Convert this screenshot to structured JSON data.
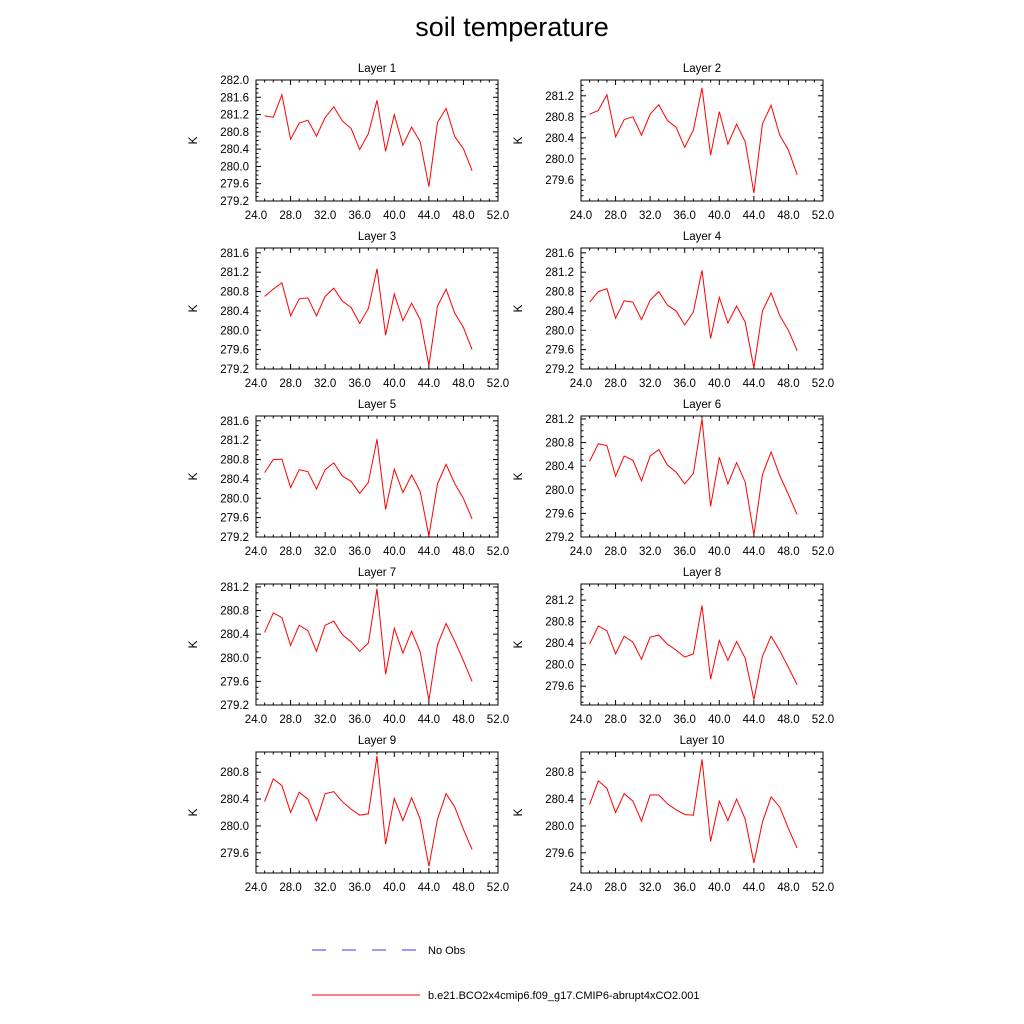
{
  "title": "soil temperature",
  "colors": {
    "model": "#ff0000",
    "obs": "#3a3aff",
    "axis": "#000000"
  },
  "legend": [
    {
      "label": "No Obs",
      "style": "dashed",
      "color": "#3a3aff"
    },
    {
      "label": "b.e21.BCO2x4cmip6.f09_g17.CMIP6-abrupt4xCO2.001",
      "style": "solid",
      "color": "#ff0000"
    }
  ],
  "chart_data": [
    {
      "type": "line",
      "title": "Layer 1",
      "ylabel": "K",
      "xlim": [
        24,
        52
      ],
      "ylim": [
        279.2,
        282.0
      ],
      "xticks": [
        "24.0",
        "28.0",
        "32.0",
        "36.0",
        "40.0",
        "44.0",
        "48.0",
        "52.0"
      ],
      "yticks": [
        "279.2",
        "279.6",
        "280.0",
        "280.4",
        "280.8",
        "281.2",
        "281.6",
        "282.0"
      ],
      "x": [
        25,
        26,
        27,
        28,
        29,
        30,
        31,
        32,
        33,
        34,
        35,
        36,
        37,
        38,
        39,
        40,
        41,
        42,
        43,
        44,
        45,
        46,
        47,
        48,
        49
      ],
      "series": [
        {
          "name": "b.e21.BCO2x4cmip6.f09_g17.CMIP6-abrupt4xCO2.001",
          "values": [
            281.17,
            281.14,
            281.66,
            280.63,
            281.0,
            281.07,
            280.7,
            281.13,
            281.38,
            281.05,
            280.88,
            280.39,
            280.76,
            281.53,
            280.35,
            281.2,
            280.49,
            280.91,
            280.57,
            279.53,
            281.02,
            281.34,
            280.69,
            280.41,
            279.9
          ]
        }
      ]
    },
    {
      "type": "line",
      "title": "Layer 2",
      "ylabel": "K",
      "xlim": [
        24,
        52
      ],
      "ylim": [
        279.2,
        281.5
      ],
      "xticks": [
        "24.0",
        "28.0",
        "32.0",
        "36.0",
        "40.0",
        "44.0",
        "48.0",
        "52.0"
      ],
      "yticks": [
        "279.6",
        "280.0",
        "280.4",
        "280.8",
        "281.2"
      ],
      "x": [
        25,
        26,
        27,
        28,
        29,
        30,
        31,
        32,
        33,
        34,
        35,
        36,
        37,
        38,
        39,
        40,
        41,
        42,
        43,
        44,
        45,
        46,
        47,
        48,
        49
      ],
      "series": [
        {
          "name": "b.e21.BCO2x4cmip6.f09_g17.CMIP6-abrupt4xCO2.001",
          "values": [
            280.85,
            280.92,
            281.22,
            280.42,
            280.75,
            280.8,
            280.45,
            280.85,
            281.03,
            280.73,
            280.6,
            280.22,
            280.55,
            281.35,
            280.07,
            280.9,
            280.28,
            280.66,
            280.33,
            279.35,
            280.67,
            281.02,
            280.45,
            280.17,
            279.7
          ]
        }
      ]
    },
    {
      "type": "line",
      "title": "Layer 3",
      "ylabel": "K",
      "xlim": [
        24,
        52
      ],
      "ylim": [
        279.2,
        281.7
      ],
      "xticks": [
        "24.0",
        "28.0",
        "32.0",
        "36.0",
        "40.0",
        "44.0",
        "48.0",
        "52.0"
      ],
      "yticks": [
        "279.2",
        "279.6",
        "280.0",
        "280.4",
        "280.8",
        "281.2",
        "281.6"
      ],
      "x": [
        25,
        26,
        27,
        28,
        29,
        30,
        31,
        32,
        33,
        34,
        35,
        36,
        37,
        38,
        39,
        40,
        41,
        42,
        43,
        44,
        45,
        46,
        47,
        48,
        49
      ],
      "series": [
        {
          "name": "b.e21.BCO2x4cmip6.f09_g17.CMIP6-abrupt4xCO2.001",
          "values": [
            280.7,
            280.85,
            280.98,
            280.3,
            280.65,
            280.67,
            280.3,
            280.7,
            280.87,
            280.6,
            280.47,
            280.14,
            280.45,
            281.27,
            279.9,
            280.75,
            280.2,
            280.56,
            280.22,
            279.27,
            280.5,
            280.85,
            280.35,
            280.06,
            279.6
          ]
        }
      ]
    },
    {
      "type": "line",
      "title": "Layer 4",
      "ylabel": "K",
      "xlim": [
        24,
        52
      ],
      "ylim": [
        279.2,
        281.7
      ],
      "xticks": [
        "24.0",
        "28.0",
        "32.0",
        "36.0",
        "40.0",
        "44.0",
        "48.0",
        "52.0"
      ],
      "yticks": [
        "279.2",
        "279.6",
        "280.0",
        "280.4",
        "280.8",
        "281.2",
        "281.6"
      ],
      "x": [
        25,
        26,
        27,
        28,
        29,
        30,
        31,
        32,
        33,
        34,
        35,
        36,
        37,
        38,
        39,
        40,
        41,
        42,
        43,
        44,
        45,
        46,
        47,
        48,
        49
      ],
      "series": [
        {
          "name": "b.e21.BCO2x4cmip6.f09_g17.CMIP6-abrupt4xCO2.001",
          "values": [
            280.58,
            280.8,
            280.86,
            280.25,
            280.61,
            280.58,
            280.22,
            280.62,
            280.8,
            280.52,
            280.4,
            280.11,
            280.38,
            281.24,
            279.83,
            280.68,
            280.15,
            280.5,
            280.17,
            279.22,
            280.4,
            280.77,
            280.3,
            280.0,
            279.58
          ]
        }
      ]
    },
    {
      "type": "line",
      "title": "Layer 5",
      "ylabel": "K",
      "xlim": [
        24,
        52
      ],
      "ylim": [
        279.2,
        281.7
      ],
      "xticks": [
        "24.0",
        "28.0",
        "32.0",
        "36.0",
        "40.0",
        "44.0",
        "48.0",
        "52.0"
      ],
      "yticks": [
        "279.2",
        "279.6",
        "280.0",
        "280.4",
        "280.8",
        "281.2",
        "281.6"
      ],
      "x": [
        25,
        26,
        27,
        28,
        29,
        30,
        31,
        32,
        33,
        34,
        35,
        36,
        37,
        38,
        39,
        40,
        41,
        42,
        43,
        44,
        45,
        46,
        47,
        48,
        49
      ],
      "series": [
        {
          "name": "b.e21.BCO2x4cmip6.f09_g17.CMIP6-abrupt4xCO2.001",
          "values": [
            280.53,
            280.8,
            280.81,
            280.22,
            280.59,
            280.55,
            280.19,
            280.59,
            280.73,
            280.46,
            280.35,
            280.1,
            280.33,
            281.22,
            279.77,
            280.6,
            280.12,
            280.48,
            280.14,
            279.22,
            280.3,
            280.7,
            280.3,
            280.0,
            279.57
          ]
        }
      ]
    },
    {
      "type": "line",
      "title": "Layer 6",
      "ylabel": "K",
      "xlim": [
        24,
        52
      ],
      "ylim": [
        279.2,
        281.25
      ],
      "xticks": [
        "24.0",
        "28.0",
        "32.0",
        "36.0",
        "40.0",
        "44.0",
        "48.0",
        "52.0"
      ],
      "yticks": [
        "279.2",
        "279.6",
        "280.0",
        "280.4",
        "280.8",
        "281.2"
      ],
      "x": [
        25,
        26,
        27,
        28,
        29,
        30,
        31,
        32,
        33,
        34,
        35,
        36,
        37,
        38,
        39,
        40,
        41,
        42,
        43,
        44,
        45,
        46,
        47,
        48,
        49
      ],
      "series": [
        {
          "name": "b.e21.BCO2x4cmip6.f09_g17.CMIP6-abrupt4xCO2.001",
          "values": [
            280.48,
            280.78,
            280.75,
            280.23,
            280.57,
            280.5,
            280.15,
            280.57,
            280.68,
            280.42,
            280.3,
            280.1,
            280.28,
            281.2,
            279.72,
            280.55,
            280.1,
            280.46,
            280.13,
            279.23,
            280.26,
            280.64,
            280.24,
            279.92,
            279.58
          ]
        }
      ]
    },
    {
      "type": "line",
      "title": "Layer 7",
      "ylabel": "K",
      "xlim": [
        24,
        52
      ],
      "ylim": [
        279.2,
        281.25
      ],
      "xticks": [
        "24.0",
        "28.0",
        "32.0",
        "36.0",
        "40.0",
        "44.0",
        "48.0",
        "52.0"
      ],
      "yticks": [
        "279.2",
        "279.6",
        "280.0",
        "280.4",
        "280.8",
        "281.2"
      ],
      "x": [
        25,
        26,
        27,
        28,
        29,
        30,
        31,
        32,
        33,
        34,
        35,
        36,
        37,
        38,
        39,
        40,
        41,
        42,
        43,
        44,
        45,
        46,
        47,
        48,
        49
      ],
      "series": [
        {
          "name": "b.e21.BCO2x4cmip6.f09_g17.CMIP6-abrupt4xCO2.001",
          "values": [
            280.43,
            280.76,
            280.68,
            280.21,
            280.55,
            280.46,
            280.11,
            280.55,
            280.62,
            280.39,
            280.27,
            280.11,
            280.25,
            281.17,
            279.72,
            280.5,
            280.08,
            280.45,
            280.1,
            279.28,
            280.22,
            280.58,
            280.28,
            279.95,
            279.6
          ]
        }
      ]
    },
    {
      "type": "line",
      "title": "Layer 8",
      "ylabel": "K",
      "xlim": [
        24,
        52
      ],
      "ylim": [
        279.25,
        281.5
      ],
      "xticks": [
        "24.0",
        "28.0",
        "32.0",
        "36.0",
        "40.0",
        "44.0",
        "48.0",
        "52.0"
      ],
      "yticks": [
        "279.6",
        "280.0",
        "280.4",
        "280.8",
        "281.2"
      ],
      "x": [
        25,
        26,
        27,
        28,
        29,
        30,
        31,
        32,
        33,
        34,
        35,
        36,
        37,
        38,
        39,
        40,
        41,
        42,
        43,
        44,
        45,
        46,
        47,
        48,
        49
      ],
      "series": [
        {
          "name": "b.e21.BCO2x4cmip6.f09_g17.CMIP6-abrupt4xCO2.001",
          "values": [
            280.38,
            280.72,
            280.63,
            280.2,
            280.53,
            280.42,
            280.1,
            280.51,
            280.55,
            280.38,
            280.27,
            280.14,
            280.2,
            281.1,
            279.73,
            280.45,
            280.08,
            280.43,
            280.12,
            279.35,
            280.16,
            280.53,
            280.26,
            279.95,
            279.63
          ]
        }
      ]
    },
    {
      "type": "line",
      "title": "Layer 9",
      "ylabel": "K",
      "xlim": [
        24,
        52
      ],
      "ylim": [
        279.3,
        281.1
      ],
      "xticks": [
        "24.0",
        "28.0",
        "32.0",
        "36.0",
        "40.0",
        "44.0",
        "48.0",
        "52.0"
      ],
      "yticks": [
        "279.6",
        "280.0",
        "280.4",
        "280.8"
      ],
      "x": [
        25,
        26,
        27,
        28,
        29,
        30,
        31,
        32,
        33,
        34,
        35,
        36,
        37,
        38,
        39,
        40,
        41,
        42,
        43,
        44,
        45,
        46,
        47,
        48,
        49
      ],
      "series": [
        {
          "name": "b.e21.BCO2x4cmip6.f09_g17.CMIP6-abrupt4xCO2.001",
          "values": [
            280.36,
            280.7,
            280.6,
            280.2,
            280.5,
            280.4,
            280.08,
            280.48,
            280.51,
            280.36,
            280.25,
            280.16,
            280.18,
            281.04,
            279.73,
            280.41,
            280.08,
            280.42,
            280.1,
            279.4,
            280.1,
            280.48,
            280.28,
            279.95,
            279.65
          ]
        }
      ]
    },
    {
      "type": "line",
      "title": "Layer 10",
      "ylabel": "K",
      "xlim": [
        24,
        52
      ],
      "ylim": [
        279.3,
        281.1
      ],
      "xticks": [
        "24.0",
        "28.0",
        "32.0",
        "36.0",
        "40.0",
        "44.0",
        "48.0",
        "52.0"
      ],
      "yticks": [
        "279.6",
        "280.0",
        "280.4",
        "280.8"
      ],
      "x": [
        25,
        26,
        27,
        28,
        29,
        30,
        31,
        32,
        33,
        34,
        35,
        36,
        37,
        38,
        39,
        40,
        41,
        42,
        43,
        44,
        45,
        46,
        47,
        48,
        49
      ],
      "series": [
        {
          "name": "b.e21.BCO2x4cmip6.f09_g17.CMIP6-abrupt4xCO2.001",
          "values": [
            280.32,
            280.67,
            280.56,
            280.2,
            280.48,
            280.37,
            280.07,
            280.46,
            280.46,
            280.33,
            280.24,
            280.17,
            280.16,
            280.99,
            279.77,
            280.37,
            280.08,
            280.4,
            280.1,
            279.45,
            280.06,
            280.43,
            280.28,
            279.96,
            279.67
          ]
        }
      ]
    }
  ]
}
